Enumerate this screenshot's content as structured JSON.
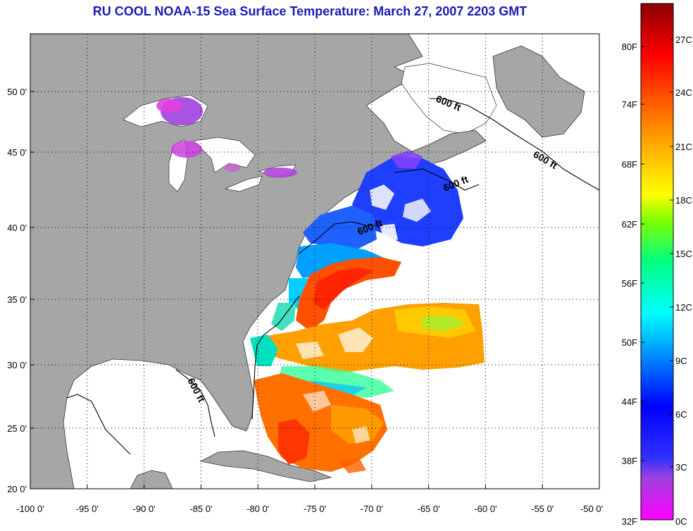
{
  "title": "RU COOL  NOAA-15  Sea Surface Temperature:  March 27, 2007 2203 GMT",
  "map": {
    "lon_ticks": [
      "-100 0'",
      "-95 0'",
      "-90 0'",
      "-85 0'",
      "-80 0'",
      "-75 0'",
      "-70 0'",
      "-65 0'",
      "-60 0'",
      "-55 0'",
      "-50 0'"
    ],
    "lat_ticks": [
      "50 0'",
      "45 0'",
      "40 0'",
      "35 0'",
      "30 0'",
      "25 0'",
      "20 0'"
    ],
    "isobath_label": "600 ft",
    "colors": {
      "land": "#a6a6a6",
      "water": "#ffffff",
      "grid": "#000000"
    }
  },
  "colorbar": {
    "fahrenheit_labels": [
      "80F",
      "74F",
      "68F",
      "62F",
      "56F",
      "50F",
      "44F",
      "38F",
      "32F"
    ],
    "celsius_labels": [
      "27C",
      "24C",
      "21C",
      "18C",
      "15C",
      "12C",
      "9C",
      "6C",
      "3C",
      "0C"
    ],
    "colors": [
      "#ff00ff",
      "#8040ff",
      "#0000ff",
      "#0080ff",
      "#00ffff",
      "#00ff80",
      "#80ff00",
      "#ffff00",
      "#ffa000",
      "#ff5000",
      "#ff0000",
      "#c00000",
      "#8b0000"
    ]
  }
}
